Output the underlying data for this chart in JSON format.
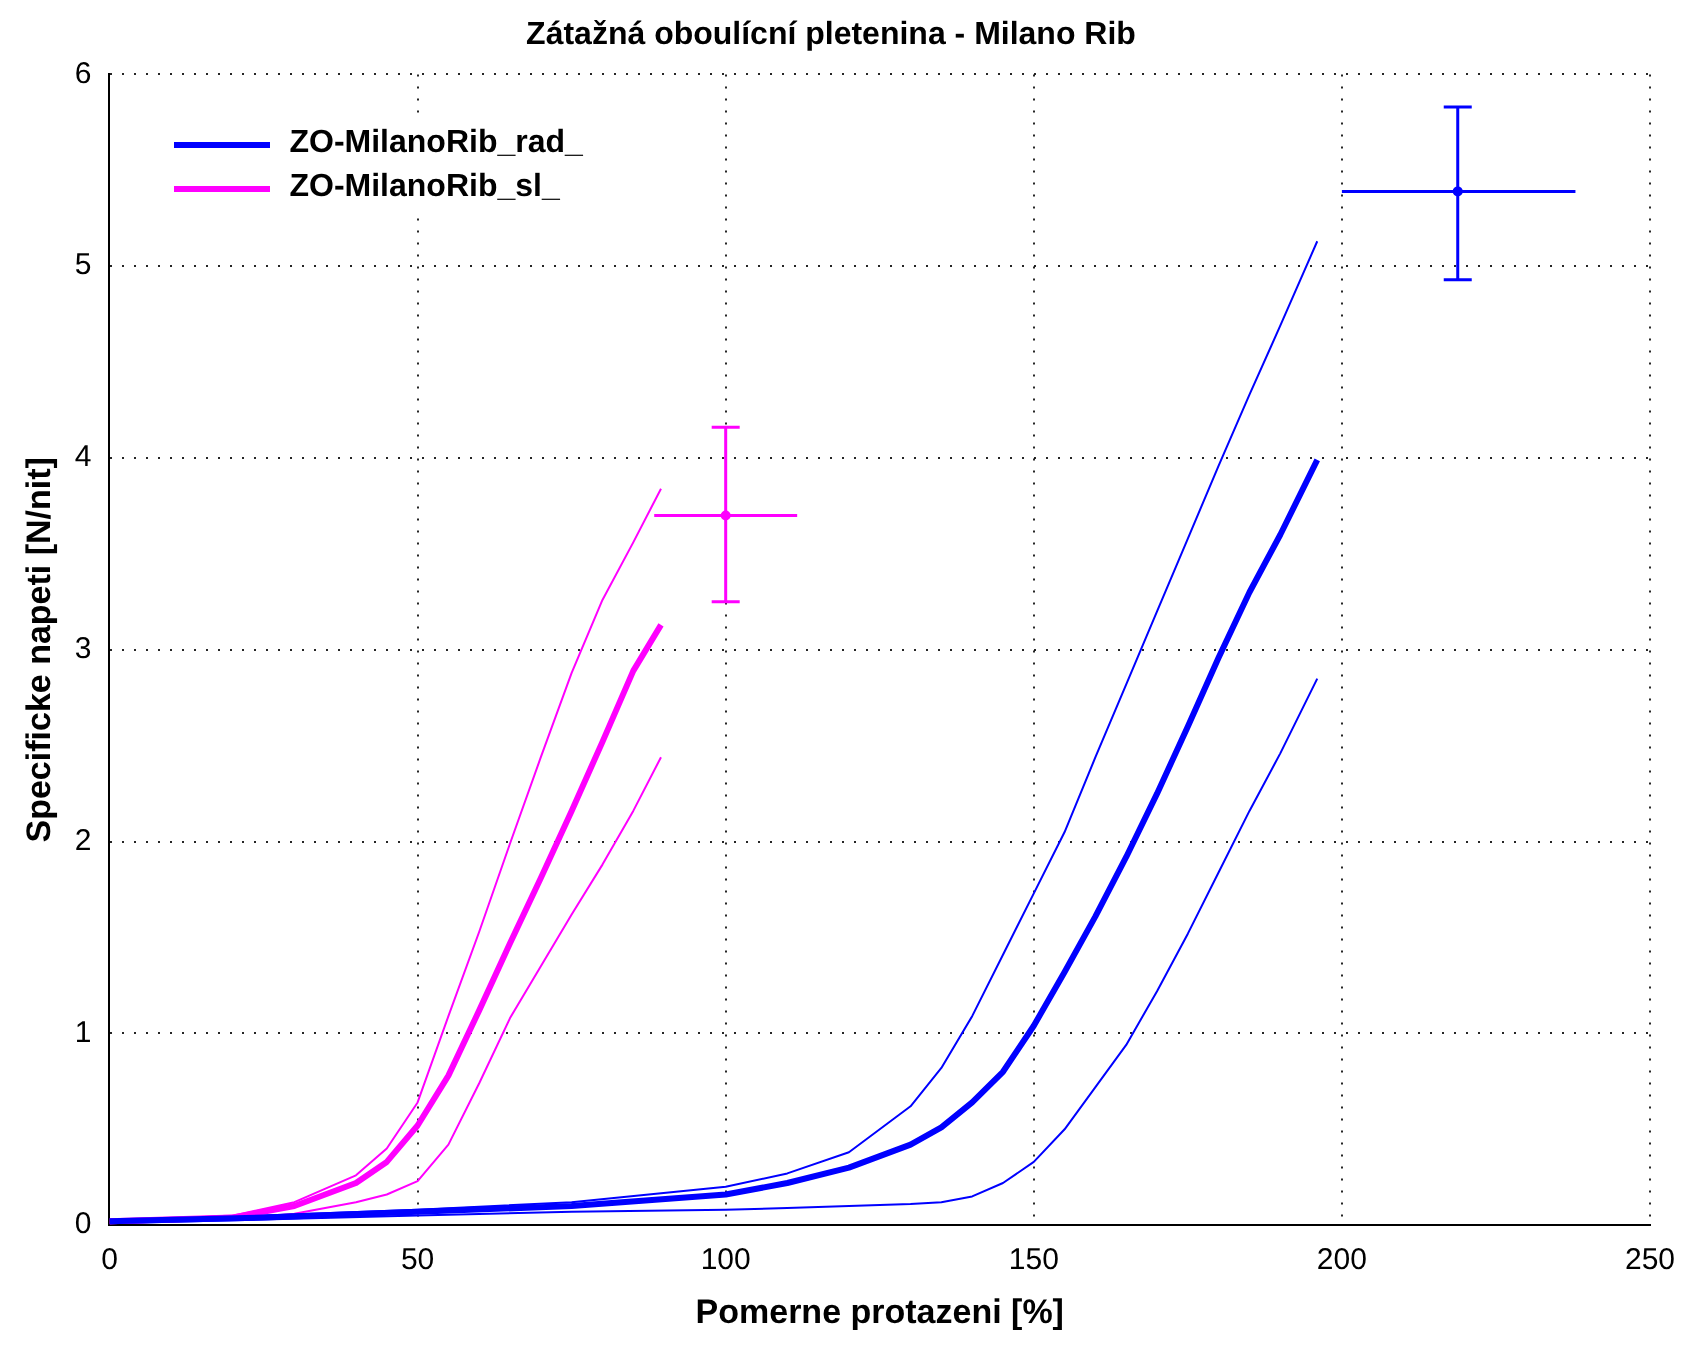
{
  "chart_data": {
    "type": "line",
    "title": "Zátažná oboulícní pletenina - Milano Rib",
    "xlabel": "Pomerne protazeni [%]",
    "ylabel": "Specificke napeti [N/nit]",
    "xlim": [
      0,
      250
    ],
    "xticks": [
      0,
      50,
      100,
      150,
      200,
      250
    ],
    "ylim": [
      0,
      6
    ],
    "yticks": [
      0,
      1,
      2,
      3,
      4,
      5,
      6
    ],
    "grid": true,
    "legend": "top left",
    "line_style": "solid",
    "series": [
      {
        "name": "ZO-MilanoRib_rad_",
        "color": "#0000ff",
        "x": [
          0,
          25,
          50,
          75,
          100,
          110,
          120,
          130,
          135,
          140,
          145,
          150,
          155,
          160,
          165,
          170,
          175,
          180,
          185,
          190,
          196
        ],
        "values": [
          0.02,
          0.04,
          0.07,
          0.1,
          0.16,
          0.22,
          0.3,
          0.42,
          0.51,
          0.64,
          0.8,
          1.04,
          1.32,
          1.61,
          1.92,
          2.25,
          2.6,
          2.96,
          3.3,
          3.6,
          3.99
        ]
      },
      {
        "name": "ZO-MilanoRib_sl_",
        "color": "#ff00ff",
        "x": [
          0,
          20,
          30,
          40,
          45,
          50,
          55,
          60,
          65,
          70,
          75,
          80,
          85,
          89.5
        ],
        "values": [
          0.02,
          0.04,
          0.1,
          0.22,
          0.33,
          0.52,
          0.78,
          1.12,
          1.47,
          1.81,
          2.16,
          2.52,
          2.89,
          3.13
        ]
      },
      {
        "color": "#0000ff",
        "x": [
          0,
          25,
          50,
          75,
          100,
          110,
          120,
          130,
          135,
          140,
          145,
          150,
          155,
          160,
          165,
          170,
          175,
          180,
          185,
          190,
          196
        ],
        "values": [
          0.01,
          0.03,
          0.05,
          0.07,
          0.08,
          0.09,
          0.1,
          0.11,
          0.12,
          0.15,
          0.22,
          0.33,
          0.5,
          0.72,
          0.94,
          1.22,
          1.52,
          1.84,
          2.16,
          2.46,
          2.85
        ]
      },
      {
        "color": "#0000ff",
        "x": [
          0,
          25,
          50,
          75,
          100,
          110,
          120,
          130,
          135,
          140,
          145,
          150,
          155,
          160,
          165,
          170,
          175,
          180,
          185,
          190,
          196
        ],
        "values": [
          0.03,
          0.05,
          0.08,
          0.12,
          0.2,
          0.27,
          0.38,
          0.62,
          0.82,
          1.09,
          1.41,
          1.73,
          2.05,
          2.44,
          2.82,
          3.2,
          3.58,
          3.96,
          4.33,
          4.69,
          5.13
        ]
      },
      {
        "color": "#ff00ff",
        "x": [
          0,
          20,
          30,
          40,
          45,
          50,
          55,
          60,
          65,
          70,
          75,
          80,
          85,
          89.5
        ],
        "values": [
          0.01,
          0.03,
          0.06,
          0.12,
          0.16,
          0.23,
          0.42,
          0.74,
          1.08,
          1.35,
          1.62,
          1.88,
          2.16,
          2.44
        ]
      },
      {
        "color": "#ff00ff",
        "x": [
          0,
          20,
          30,
          40,
          45,
          50,
          55,
          60,
          65,
          70,
          75,
          80,
          85,
          89.5
        ],
        "values": [
          0.02,
          0.05,
          0.12,
          0.26,
          0.4,
          0.64,
          1.09,
          1.53,
          1.99,
          2.44,
          2.88,
          3.26,
          3.56,
          3.84
        ]
      },
      {
        "type": "scatter",
        "color": "#0000ff",
        "x": [
          218.8
        ],
        "values": [
          5.39
        ],
        "errors": [
          [
            4.93,
            5.83
          ]
        ],
        "xerrors": [
          [
            200,
            237.9
          ]
        ]
      },
      {
        "type": "scatter",
        "color": "#ff00ff",
        "x": [
          100
        ],
        "values": [
          3.7
        ],
        "errors": [
          [
            3.25,
            4.16
          ]
        ],
        "xerrors": [
          [
            88.4,
            111.6
          ]
        ]
      }
    ]
  }
}
